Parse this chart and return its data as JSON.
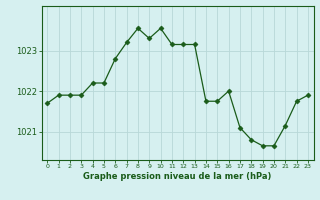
{
  "hours": [
    0,
    1,
    2,
    3,
    4,
    5,
    6,
    7,
    8,
    9,
    10,
    11,
    12,
    13,
    14,
    15,
    16,
    17,
    18,
    19,
    20,
    21,
    22,
    23
  ],
  "pressure": [
    1021.7,
    1021.9,
    1021.9,
    1021.9,
    1022.2,
    1022.2,
    1022.8,
    1023.2,
    1023.55,
    1023.3,
    1023.55,
    1023.15,
    1023.15,
    1023.15,
    1021.75,
    1021.75,
    1022.0,
    1021.1,
    1020.8,
    1020.65,
    1020.65,
    1021.15,
    1021.75,
    1021.9
  ],
  "line_color": "#1a5c1a",
  "marker": "D",
  "marker_size": 2.5,
  "bg_color": "#d6f0f0",
  "grid_color": "#b8d8d8",
  "tick_color": "#1a5c1a",
  "xlabel": "Graphe pression niveau de la mer (hPa)",
  "xlabel_color": "#1a5c1a",
  "yticks": [
    1021,
    1022,
    1023
  ],
  "ylim": [
    1020.3,
    1024.1
  ],
  "xlim": [
    -0.5,
    23.5
  ],
  "xtick_labels": [
    "0",
    "1",
    "2",
    "3",
    "4",
    "5",
    "6",
    "7",
    "8",
    "9",
    "10",
    "11",
    "12",
    "13",
    "14",
    "15",
    "16",
    "17",
    "18",
    "19",
    "20",
    "21",
    "22",
    "23"
  ]
}
